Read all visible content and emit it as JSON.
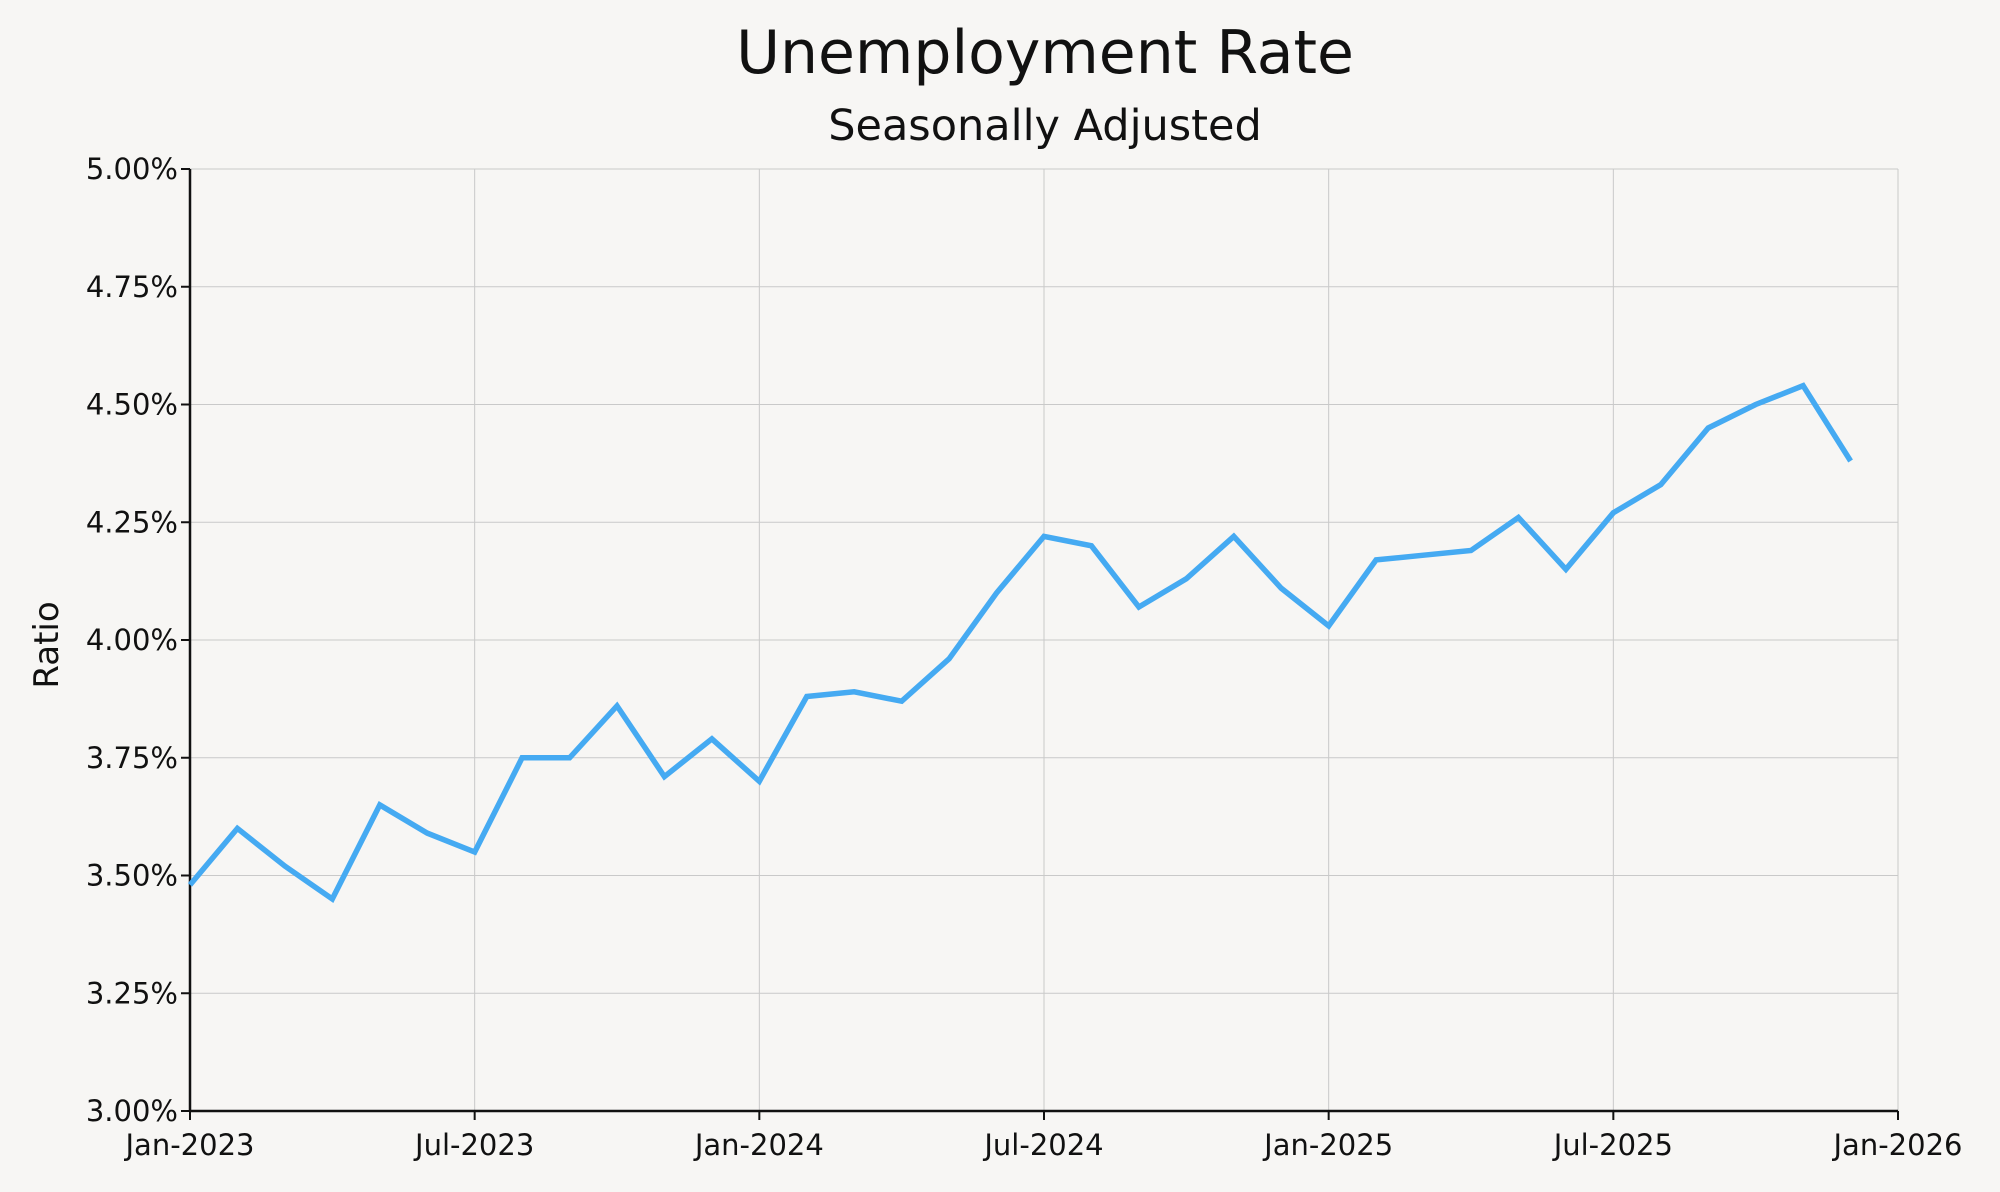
{
  "chart_data": {
    "type": "line",
    "title": "Unemployment Rate",
    "subtitle": "Seasonally Adjusted",
    "xlabel": "",
    "ylabel": "Ratio",
    "ylim": [
      3.0,
      5.0
    ],
    "xlim": [
      "2023-01",
      "2026-01"
    ],
    "grid": true,
    "y_ticks": [
      "3.00%",
      "3.25%",
      "3.50%",
      "3.75%",
      "4.00%",
      "4.25%",
      "4.50%",
      "4.75%",
      "5.00%"
    ],
    "y_tick_values": [
      3.0,
      3.25,
      3.5,
      3.75,
      4.0,
      4.25,
      4.5,
      4.75,
      5.0
    ],
    "x_ticks": [
      "Jan-2023",
      "Jul-2023",
      "Jan-2024",
      "Jul-2024",
      "Jan-2025",
      "Jul-2025",
      "Jan-2026"
    ],
    "x_tick_values": [
      "2023-01",
      "2023-07",
      "2024-01",
      "2024-07",
      "2025-01",
      "2025-07",
      "2026-01"
    ],
    "line_color": "#45aaf2",
    "series": [
      {
        "x": [
          "2023-01",
          "2023-02",
          "2023-03",
          "2023-04",
          "2023-05",
          "2023-06",
          "2023-07",
          "2023-08",
          "2023-09",
          "2023-10",
          "2023-11",
          "2023-12",
          "2024-01",
          "2024-02",
          "2024-03",
          "2024-04",
          "2024-05",
          "2024-06",
          "2024-07",
          "2024-08",
          "2024-09",
          "2024-10",
          "2024-11",
          "2024-12",
          "2025-01",
          "2025-02",
          "2025-03",
          "2025-04",
          "2025-05",
          "2025-06",
          "2025-07",
          "2025-08",
          "2025-09",
          "2025-10",
          "2025-11",
          "2025-12"
        ],
        "values": [
          3.48,
          3.6,
          3.52,
          3.45,
          3.65,
          3.59,
          3.55,
          3.75,
          3.75,
          3.86,
          3.71,
          3.79,
          3.7,
          3.88,
          3.89,
          3.87,
          3.96,
          4.1,
          4.22,
          4.2,
          4.07,
          4.13,
          4.22,
          4.11,
          4.03,
          4.17,
          4.18,
          4.19,
          4.26,
          4.15,
          4.27,
          4.33,
          4.45,
          4.5,
          4.54,
          4.38
        ]
      }
    ]
  }
}
